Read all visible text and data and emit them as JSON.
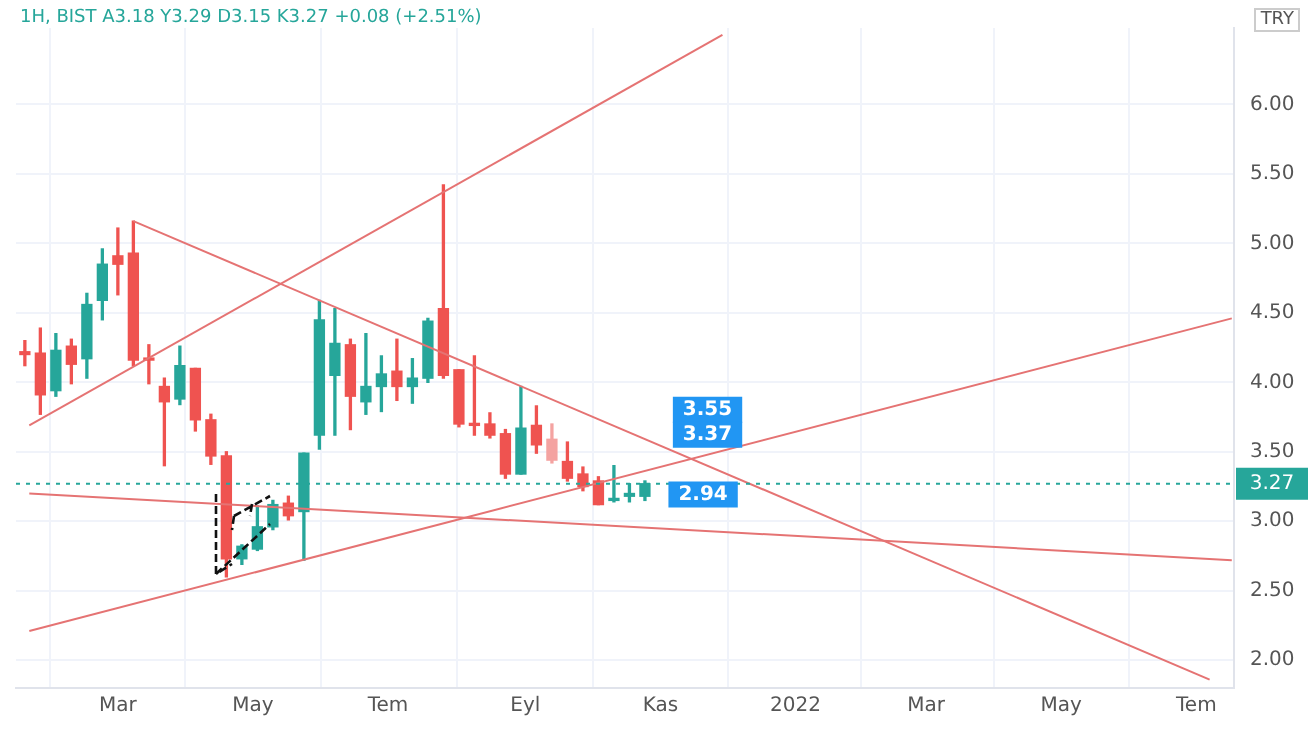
{
  "chart_data": {
    "type": "candlestick",
    "title": "1H, BIST A3.18 Y3.29 D3.15 K3.27 +0.08 (+2.51%)",
    "x": [
      "2021-01-18",
      "2021-01-25",
      "2021-02-01",
      "2021-02-08",
      "2021-02-15",
      "2021-02-22",
      "2021-03-01",
      "2021-03-08",
      "2021-03-15",
      "2021-03-22",
      "2021-03-29",
      "2021-04-05",
      "2021-04-12",
      "2021-04-19",
      "2021-04-26",
      "2021-05-03",
      "2021-05-10",
      "2021-05-17",
      "2021-05-24",
      "2021-05-31",
      "2021-06-07",
      "2021-06-14",
      "2021-06-21",
      "2021-06-28",
      "2021-07-05",
      "2021-07-12",
      "2021-07-19",
      "2021-07-26",
      "2021-08-02",
      "2021-08-09",
      "2021-08-16",
      "2021-08-23",
      "2021-08-30",
      "2021-09-06",
      "2021-09-13",
      "2021-09-20",
      "2021-09-27",
      "2021-10-04",
      "2021-10-11",
      "2021-10-18",
      "2021-10-25"
    ],
    "ohlc": [
      [
        4.22,
        4.3,
        4.12,
        4.2
      ],
      [
        4.21,
        4.39,
        3.77,
        3.91
      ],
      [
        3.94,
        4.35,
        3.9,
        4.23
      ],
      [
        4.26,
        4.31,
        3.99,
        4.13
      ],
      [
        4.17,
        4.64,
        4.03,
        4.56
      ],
      [
        4.59,
        4.96,
        4.45,
        4.85
      ],
      [
        4.91,
        5.11,
        4.63,
        4.85
      ],
      [
        4.93,
        5.16,
        4.12,
        4.16
      ],
      [
        4.17,
        4.27,
        3.99,
        4.16
      ],
      [
        3.97,
        4.03,
        3.4,
        3.86
      ],
      [
        3.88,
        4.26,
        3.84,
        4.12
      ],
      [
        4.1,
        4.1,
        3.65,
        3.73
      ],
      [
        3.73,
        3.77,
        3.41,
        3.47
      ],
      [
        3.47,
        3.5,
        2.6,
        2.73
      ],
      [
        2.73,
        2.83,
        2.69,
        2.82
      ],
      [
        2.8,
        3.11,
        2.79,
        2.96
      ],
      [
        2.96,
        3.15,
        2.94,
        3.12
      ],
      [
        3.13,
        3.18,
        3.01,
        3.04
      ],
      [
        3.07,
        3.49,
        2.72,
        3.49
      ],
      [
        3.62,
        4.59,
        3.52,
        4.45
      ],
      [
        4.05,
        4.53,
        3.62,
        4.28
      ],
      [
        4.27,
        4.31,
        3.66,
        3.9
      ],
      [
        3.86,
        4.35,
        3.77,
        3.97
      ],
      [
        3.97,
        4.19,
        3.79,
        4.06
      ],
      [
        4.08,
        4.31,
        3.87,
        3.97
      ],
      [
        3.97,
        4.17,
        3.85,
        4.03
      ],
      [
        4.03,
        4.46,
        4.0,
        4.44
      ],
      [
        4.53,
        5.42,
        4.03,
        4.05
      ],
      [
        4.09,
        4.09,
        3.68,
        3.7
      ],
      [
        3.7,
        4.19,
        3.62,
        3.69
      ],
      [
        3.7,
        3.78,
        3.6,
        3.62
      ],
      [
        3.63,
        3.66,
        3.31,
        3.34
      ],
      [
        3.34,
        3.97,
        3.34,
        3.67
      ],
      [
        3.69,
        3.83,
        3.49,
        3.55
      ],
      [
        3.59,
        3.7,
        3.42,
        3.44
      ],
      [
        3.43,
        3.57,
        3.29,
        3.31
      ],
      [
        3.34,
        3.39,
        3.22,
        3.25
      ],
      [
        3.29,
        3.32,
        3.12,
        3.12
      ],
      [
        3.15,
        3.4,
        3.14,
        3.16
      ],
      [
        3.18,
        3.27,
        3.14,
        3.2
      ],
      [
        3.18,
        3.29,
        3.15,
        3.27
      ]
    ],
    "colors": [
      "#ef5350",
      "#ef5350",
      "#26a69a",
      "#ef5350",
      "#26a69a",
      "#26a69a",
      "#ef5350",
      "#ef5350",
      "#ef5350",
      "#ef5350",
      "#26a69a",
      "#ef5350",
      "#ef5350",
      "#ef5350",
      "#26a69a",
      "#26a69a",
      "#26a69a",
      "#ef5350",
      "#26a69a",
      "#26a69a",
      "#26a69a",
      "#ef5350",
      "#26a69a",
      "#26a69a",
      "#ef5350",
      "#26a69a",
      "#26a69a",
      "#ef5350",
      "#ef5350",
      "#ef5350",
      "#ef5350",
      "#ef5350",
      "#26a69a",
      "#ef5350",
      "#f4a3a1",
      "#ef5350",
      "#ef5350",
      "#ef5350",
      "#26a69a",
      "#26a69a",
      "#26a69a"
    ],
    "series": [
      {
        "type": "line",
        "color": "#e57373",
        "x": [
          "2021-01-20",
          "2021-11-29"
        ],
        "values": [
          3.69,
          6.5
        ]
      },
      {
        "type": "line",
        "color": "#e57373",
        "x": [
          "2021-03-08",
          "2022-07-07"
        ],
        "values": [
          5.16,
          1.86
        ]
      },
      {
        "type": "line",
        "color": "#e57373",
        "x": [
          "2021-01-20",
          "2022-07-17"
        ],
        "values": [
          2.21,
          4.46
        ]
      },
      {
        "type": "line",
        "color": "#e57373",
        "x": [
          "2021-01-20",
          "2022-07-17"
        ],
        "values": [
          3.2,
          2.72
        ]
      }
    ],
    "xlim": [
      "2021-01-14",
      "2022-07-18"
    ],
    "xticks": [
      {
        "value": "2021-03-01",
        "label": "Mar"
      },
      {
        "value": "2021-05-01",
        "label": "May"
      },
      {
        "value": "2021-07-01",
        "label": "Tem"
      },
      {
        "value": "2021-09-01",
        "label": "Eyl"
      },
      {
        "value": "2021-11-01",
        "label": "Kas"
      },
      {
        "value": "2022-01-01",
        "label": "2022"
      },
      {
        "value": "2022-03-01",
        "label": "Mar"
      },
      {
        "value": "2022-05-01",
        "label": "May"
      },
      {
        "value": "2022-07-01",
        "label": "Tem"
      }
    ],
    "ylim": [
      1.8,
      6.55
    ],
    "yticks": [
      {
        "value": 2,
        "label": "2.00"
      },
      {
        "value": 2.5,
        "label": "2.50"
      },
      {
        "value": 3,
        "label": "3.00"
      },
      {
        "value": 3.5,
        "label": "3.50"
      },
      {
        "value": 4,
        "label": "4.00"
      },
      {
        "value": 4.5,
        "label": "4.50"
      },
      {
        "value": 5,
        "label": "5.00"
      },
      {
        "value": 5.5,
        "label": "5.50"
      },
      {
        "value": 6,
        "label": "6.00"
      }
    ],
    "ref_lines": [
      {
        "axis": "y",
        "value": 3.27,
        "label": "3.27",
        "color": "#26a69a",
        "line_style": "dotted"
      }
    ],
    "annotations": [
      "TRY",
      {
        "text": "3.55",
        "x": "2021-11-03",
        "y": 3.55
      },
      {
        "text": "3.37",
        "x": "2021-11-03",
        "y": 3.37
      },
      {
        "text": "2.94",
        "x": "2021-11-01",
        "y": 2.94
      }
    ],
    "grid": true,
    "legend": false,
    "marker": "none",
    "line_style": "solid"
  }
}
